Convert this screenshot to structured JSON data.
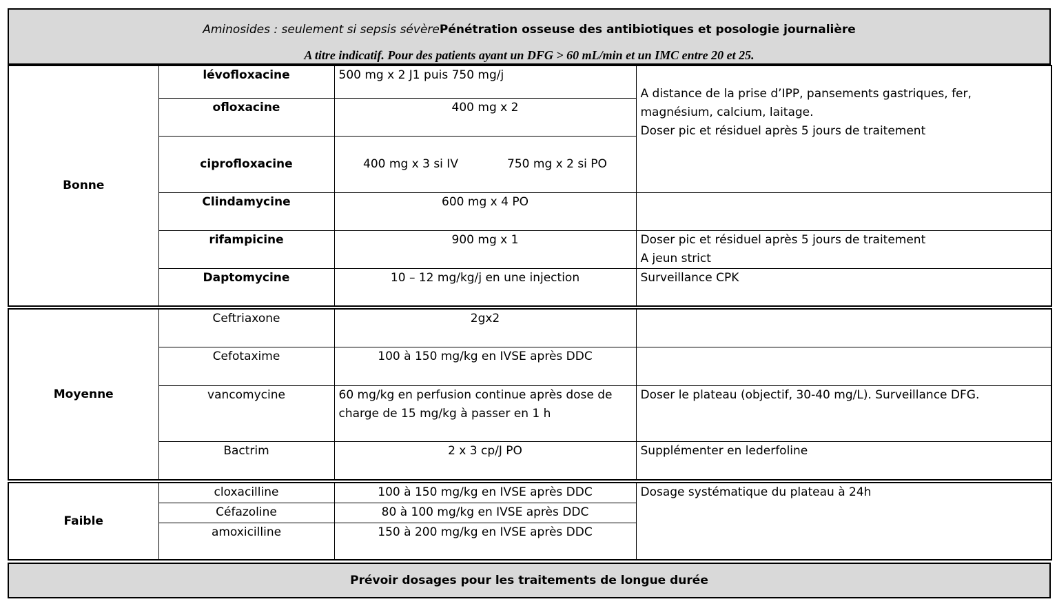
{
  "header": {
    "line1_italic": "Aminosides : seulement si sepsis sévère",
    "line1_bold": "Pénétration osseuse des antibiotiques et posologie journalière",
    "line2": "A titre indicatif. Pour des patients ayant un DFG > 60 mL/min et un IMC entre 20 et 25."
  },
  "groups": {
    "bonne": {
      "label": "Bonne",
      "rows": [
        {
          "drug": "lévofloxacine",
          "dose": "500 mg x 2 J1 puis 750 mg/j"
        },
        {
          "drug": "ofloxacine",
          "dose": "400 mg x 2"
        },
        {
          "drug": "ciprofloxacine",
          "dose_a": "400 mg x 3 si IV",
          "dose_b": "750 mg x 2 si PO"
        },
        {
          "drug": "Clindamycine",
          "dose": "600 mg x 4 PO"
        },
        {
          "drug": "rifampicine",
          "dose": "900 mg x 1"
        },
        {
          "drug": "Daptomycine",
          "dose": "10 – 12 mg/kg/j en une injection"
        }
      ],
      "note_quinolones": [
        "A distance de la prise d’IPP, pansements gastriques, fer,",
        "magnésium, calcium, laitage.",
        "Doser  pic et résiduel après 5 jours de traitement"
      ],
      "note_rifampicine": [
        "Doser pic et résiduel après 5 jours de traitement",
        "A jeun strict"
      ],
      "note_daptomycine": "Surveillance CPK"
    },
    "moyenne": {
      "label": "Moyenne",
      "rows": [
        {
          "drug": "Ceftriaxone",
          "dose": "2gx2",
          "note": ""
        },
        {
          "drug": "Cefotaxime",
          "dose": "100 à 150 mg/kg en IVSE après DDC",
          "note": ""
        },
        {
          "drug": "vancomycine",
          "dose": "60 mg/kg en perfusion continue après dose de charge de 15 mg/kg à passer en 1 h",
          "note": "Doser le plateau (objectif, 30-40 mg/L). Surveillance DFG."
        },
        {
          "drug": "Bactrim",
          "dose": "2 x 3 cp/J PO",
          "note": "Supplémenter en lederfoline"
        }
      ]
    },
    "faible": {
      "label": "Faible",
      "rows": [
        {
          "drug": "cloxacilline",
          "dose": "100 à 150 mg/kg en IVSE après DDC"
        },
        {
          "drug": "Céfazoline",
          "dose": "80 à 100 mg/kg en IVSE après DDC"
        },
        {
          "drug": "amoxicilline",
          "dose": "150 à 200 mg/kg en IVSE après DDC"
        }
      ],
      "note": "Dosage systématique du plateau à 24h"
    }
  },
  "footer": "Prévoir dosages pour les traitements de longue durée"
}
